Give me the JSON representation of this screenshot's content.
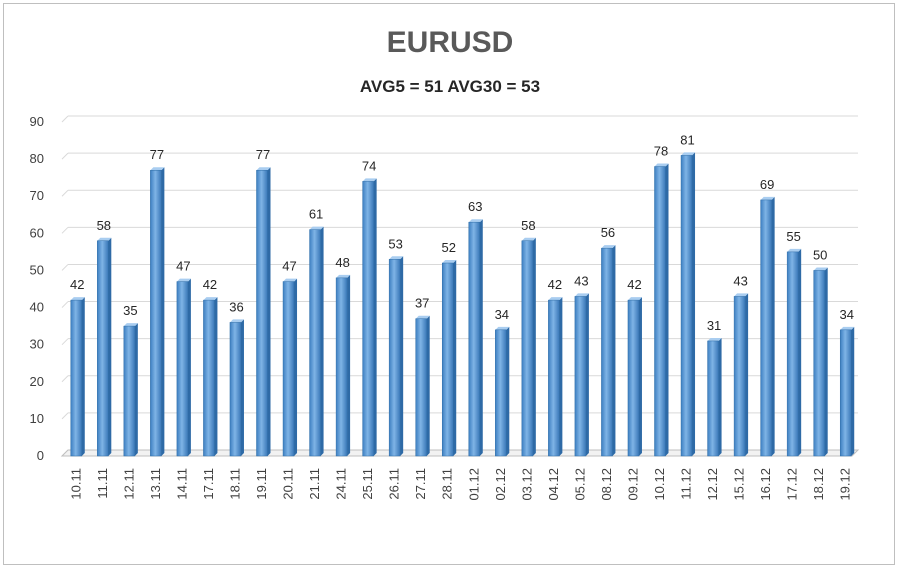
{
  "chart_data": {
    "type": "bar",
    "title": "EURUSD",
    "subtitle": "AVG5 = 51 AVG30 = 53",
    "xlabel": "",
    "ylabel": "",
    "ylim": [
      0,
      90
    ],
    "yticks": [
      0,
      10,
      20,
      30,
      40,
      50,
      60,
      70,
      80,
      90
    ],
    "grid": true,
    "legend": "none",
    "bar_color": "#5b9bd5",
    "categories": [
      "10.11",
      "11.11",
      "12.11",
      "13.11",
      "14.11",
      "17.11",
      "18.11",
      "19.11",
      "20.11",
      "21.11",
      "24.11",
      "25.11",
      "26.11",
      "27.11",
      "28.11",
      "01.12",
      "02.12",
      "03.12",
      "04.12",
      "05.12",
      "08.12",
      "09.12",
      "10.12",
      "11.12",
      "12.12",
      "15.12",
      "16.12",
      "17.12",
      "18.12",
      "19.12"
    ],
    "values": [
      42,
      58,
      35,
      77,
      47,
      42,
      36,
      77,
      47,
      61,
      48,
      74,
      53,
      37,
      52,
      63,
      34,
      58,
      42,
      43,
      56,
      42,
      78,
      81,
      31,
      43,
      69,
      55,
      50,
      34
    ]
  }
}
